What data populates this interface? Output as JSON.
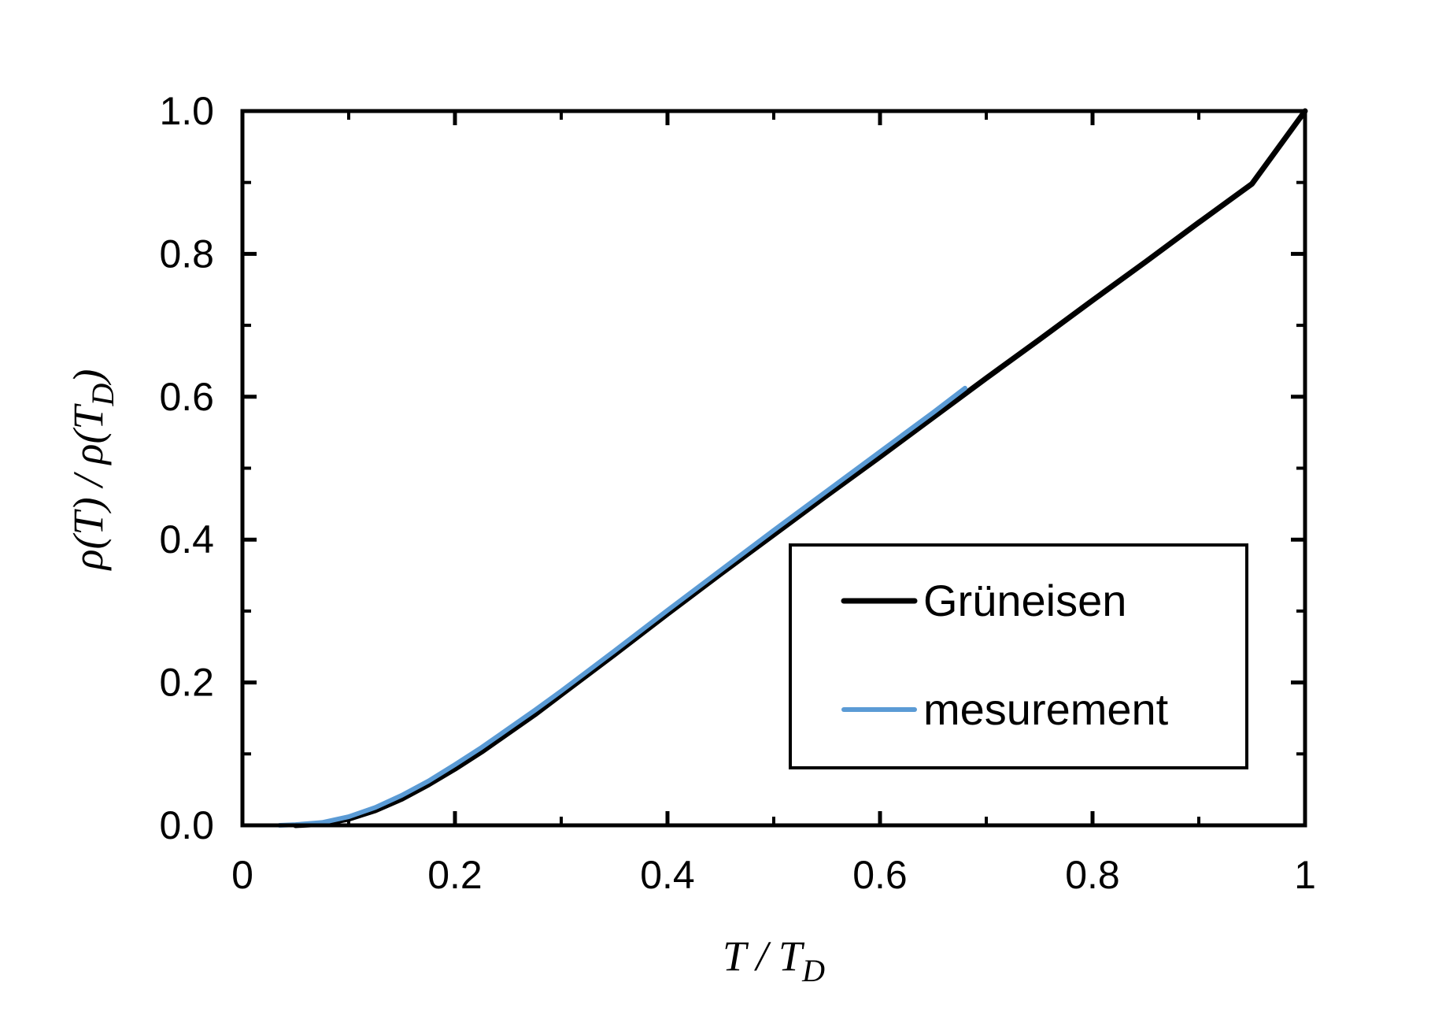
{
  "chart_data": {
    "type": "line",
    "title": "",
    "xlabel": {
      "main": "T / T",
      "sub": "D"
    },
    "ylabel": {
      "main": "ρ(T) / ρ(T",
      "sub": "D",
      "tail": ")"
    },
    "xlim": [
      0,
      1
    ],
    "ylim": [
      0,
      1
    ],
    "x_ticks": [
      {
        "value": 0,
        "label": "0"
      },
      {
        "value": 0.2,
        "label": "0.2"
      },
      {
        "value": 0.4,
        "label": "0.4"
      },
      {
        "value": 0.6,
        "label": "0.6"
      },
      {
        "value": 0.8,
        "label": "0.8"
      },
      {
        "value": 1,
        "label": "1"
      }
    ],
    "y_ticks": [
      {
        "value": 0,
        "label": "0.0"
      },
      {
        "value": 0.2,
        "label": "0.2"
      },
      {
        "value": 0.4,
        "label": "0.4"
      },
      {
        "value": 0.6,
        "label": "0.6"
      },
      {
        "value": 0.8,
        "label": "0.8"
      },
      {
        "value": 1,
        "label": "1.0"
      }
    ],
    "minor_tick_step": 0.1,
    "grid": false,
    "legend_position": "lower-right",
    "series": [
      {
        "name": "Grüneisen",
        "color": "#000000",
        "x": [
          0.05,
          0.075,
          0.1,
          0.125,
          0.15,
          0.175,
          0.2,
          0.225,
          0.25,
          0.275,
          0.3,
          0.35,
          0.4,
          0.45,
          0.5,
          0.55,
          0.6,
          0.65,
          0.7,
          0.75,
          0.8,
          0.85,
          0.9,
          0.95,
          1.0
        ],
        "y": [
          0.0,
          0.002,
          0.009,
          0.021,
          0.037,
          0.057,
          0.079,
          0.103,
          0.129,
          0.155,
          0.183,
          0.239,
          0.296,
          0.352,
          0.407,
          0.462,
          0.516,
          0.571,
          0.626,
          0.68,
          0.735,
          0.789,
          0.844,
          0.898,
          1.0
        ]
      },
      {
        "name": "mesurement",
        "color": "#5b9bd5",
        "x": [
          0.035,
          0.05,
          0.075,
          0.1,
          0.125,
          0.15,
          0.175,
          0.2,
          0.225,
          0.25,
          0.275,
          0.3,
          0.35,
          0.4,
          0.45,
          0.5,
          0.55,
          0.6,
          0.65,
          0.68
        ],
        "y": [
          0.0,
          0.001,
          0.004,
          0.012,
          0.025,
          0.042,
          0.062,
          0.085,
          0.109,
          0.135,
          0.161,
          0.188,
          0.244,
          0.301,
          0.357,
          0.413,
          0.468,
          0.523,
          0.578,
          0.612
        ]
      }
    ]
  }
}
